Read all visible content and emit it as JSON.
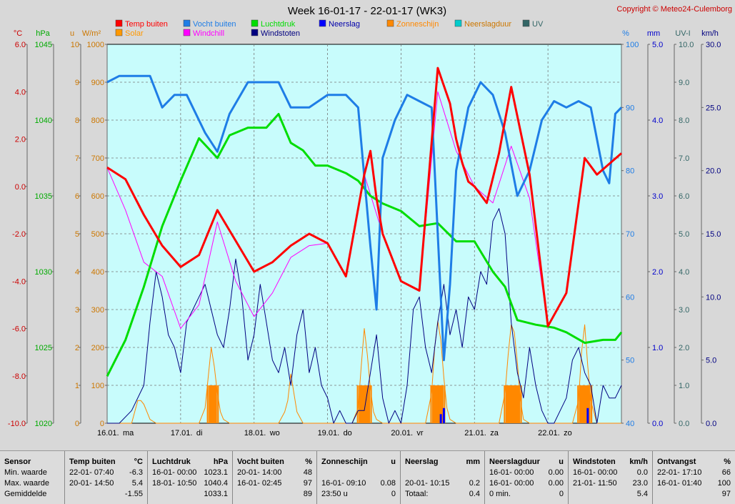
{
  "title": "Week 16-01-17 - 22-01-17 (WK3)",
  "copyright": "Copyright © Meteo24-Culemborg",
  "legend": [
    {
      "label": "Temp buiten",
      "color": "#ff0000"
    },
    {
      "label": "Vocht buiten",
      "color": "#1e7de6"
    },
    {
      "label": "Luchtdruk",
      "color": "#00dd00"
    },
    {
      "label": "Neerslag",
      "color": "#0000ff"
    },
    {
      "label": "Zonneschijn",
      "color": "#ff8800"
    },
    {
      "label": "Neerslagduur",
      "color": "#00cccc"
    },
    {
      "label": "UV",
      "color": "#336666"
    },
    {
      "label": "Solar",
      "color": "#ff9900"
    },
    {
      "label": "Windchill",
      "color": "#ff00ff"
    },
    {
      "label": "Windstoten",
      "color": "#000080"
    }
  ],
  "chart_data": {
    "type": "line",
    "x_start": "2017-01-16 00:00",
    "x_end": "2017-01-22 23:59",
    "x_tick_labels": [
      "16.01.",
      "ma",
      "17.01.",
      "di",
      "18.01.",
      "wo",
      "19.01.",
      "do",
      "20.01.",
      "vr",
      "21.01.",
      "za",
      "22.01.",
      "zo"
    ],
    "axes": {
      "temp": {
        "unit": "°C",
        "min": -10,
        "max": 6,
        "ticks": [
          "6.0",
          "4.0",
          "2.0",
          "0.0",
          "-2.0",
          "-4.0",
          "-6.0",
          "-8.0",
          "-10.0"
        ],
        "color": "#cc0000"
      },
      "pressure": {
        "unit": "hPa",
        "min": 1020,
        "max": 1045,
        "ticks": [
          "1045",
          "1040",
          "1035",
          "1030",
          "1025",
          "1020"
        ],
        "color": "#00aa00"
      },
      "sun_hours": {
        "unit": "u",
        "min": 0,
        "max": 10,
        "ticks": [
          "10",
          "9",
          "8",
          "7",
          "6",
          "5",
          "4",
          "3",
          "2",
          "1",
          "0"
        ],
        "color": "#cc7700"
      },
      "solar": {
        "unit": "W/m²",
        "min": 0,
        "max": 1000,
        "ticks": [
          "1000",
          "900",
          "800",
          "700",
          "600",
          "500",
          "400",
          "300",
          "200",
          "100",
          "0"
        ],
        "color": "#cc7700"
      },
      "humidity": {
        "unit": "%",
        "min": 40,
        "max": 100,
        "ticks": [
          "100",
          "90",
          "80",
          "70",
          "60",
          "50",
          "40"
        ],
        "color": "#1e7de6"
      },
      "rain": {
        "unit": "mm",
        "min": 0,
        "max": 5,
        "ticks": [
          "5.0",
          "4.0",
          "3.0",
          "2.0",
          "1.0",
          "0.0"
        ],
        "color": "#0000cc"
      },
      "uv": {
        "unit": "UV-I",
        "min": 0,
        "max": 10,
        "ticks": [
          "10.0",
          "9.0",
          "8.0",
          "7.0",
          "6.0",
          "5.0",
          "4.0",
          "3.0",
          "2.0",
          "1.0",
          "0.0"
        ],
        "color": "#336666"
      },
      "wind": {
        "unit": "km/h",
        "min": 0,
        "max": 30,
        "ticks": [
          "30.0",
          "25.0",
          "20.0",
          "15.0",
          "10.0",
          "5.0",
          "0.0"
        ],
        "color": "#000080"
      }
    },
    "series": [
      {
        "name": "Temp buiten",
        "axis": "temp",
        "hours": [
          0,
          6,
          12,
          18,
          24,
          30,
          36,
          42,
          48,
          54,
          60,
          66,
          72,
          78,
          84,
          86,
          88,
          90,
          96,
          102,
          108,
          112,
          114,
          116,
          118,
          120,
          124,
          128,
          132,
          138,
          144,
          150,
          156,
          160,
          168
        ],
        "values": [
          0.8,
          0.3,
          -1.2,
          -2.5,
          -3.4,
          -2.9,
          -1.0,
          -2.3,
          -3.6,
          -3.2,
          -2.5,
          -2.0,
          -2.4,
          -3.8,
          0.5,
          1.5,
          -0.5,
          -2.0,
          -4.0,
          -4.4,
          5.0,
          3.5,
          2.0,
          1.0,
          0.2,
          0.0,
          -0.7,
          1.4,
          4.2,
          0.5,
          -5.9,
          -4.5,
          1.2,
          0.5,
          1.4
        ]
      },
      {
        "name": "Windchill",
        "axis": "temp",
        "hours": [
          0,
          6,
          12,
          18,
          24,
          30,
          36,
          42,
          48,
          54,
          60,
          66,
          72,
          78,
          84,
          90,
          96,
          102,
          108,
          114,
          120,
          126,
          132,
          138,
          144,
          150,
          156,
          160,
          168
        ],
        "values": [
          0.8,
          -1.0,
          -3.2,
          -3.8,
          -6.0,
          -5.0,
          -1.5,
          -4.0,
          -5.5,
          -4.5,
          -3.0,
          -2.5,
          -2.4,
          -3.8,
          0.5,
          -2.0,
          -4.0,
          -4.4,
          4.0,
          1.5,
          0.0,
          -0.7,
          1.7,
          -0.5,
          -5.9,
          -4.5,
          1.2,
          0.5,
          1.4
        ]
      },
      {
        "name": "Vocht buiten",
        "axis": "humidity",
        "hours": [
          0,
          4,
          8,
          14,
          18,
          22,
          26,
          32,
          36,
          40,
          46,
          52,
          56,
          60,
          66,
          72,
          78,
          82,
          86,
          88,
          90,
          94,
          98,
          102,
          106,
          110,
          112,
          114,
          118,
          122,
          126,
          130,
          134,
          138,
          142,
          146,
          150,
          154,
          158,
          162,
          164,
          166,
          168
        ],
        "values": [
          94,
          95,
          95,
          95,
          90,
          92,
          92,
          86,
          83,
          89,
          94,
          94,
          94,
          90,
          90,
          92,
          92,
          90,
          68,
          58,
          82,
          88,
          92,
          91,
          90,
          50,
          62,
          80,
          90,
          94,
          92,
          86,
          76,
          80,
          88,
          91,
          90,
          91,
          90,
          80,
          78,
          89,
          90
        ]
      },
      {
        "name": "Luchtdruk",
        "axis": "pressure",
        "hours": [
          0,
          6,
          12,
          18,
          24,
          30,
          36,
          40,
          46,
          52,
          56,
          60,
          64,
          68,
          72,
          78,
          82,
          86,
          90,
          96,
          102,
          108,
          114,
          120,
          126,
          130,
          134,
          140,
          146,
          150,
          156,
          162,
          166,
          168
        ],
        "values": [
          1023.1,
          1025.5,
          1029,
          1033,
          1036,
          1038.8,
          1037.5,
          1039,
          1039.5,
          1039.5,
          1040.4,
          1038.5,
          1038,
          1037,
          1037,
          1036.5,
          1036,
          1035,
          1034.5,
          1034,
          1033,
          1033.2,
          1032,
          1032,
          1030,
          1029,
          1026.8,
          1026.5,
          1026.3,
          1026,
          1025.3,
          1025.5,
          1025.5,
          1026
        ]
      },
      {
        "name": "Windstoten",
        "axis": "wind",
        "hours": [
          0,
          4,
          8,
          12,
          14,
          16,
          18,
          20,
          22,
          24,
          26,
          28,
          30,
          32,
          34,
          36,
          38,
          40,
          42,
          44,
          46,
          48,
          50,
          52,
          54,
          56,
          58,
          60,
          62,
          64,
          66,
          68,
          70,
          72,
          74,
          76,
          78,
          80,
          82,
          84,
          86,
          88,
          90,
          92,
          94,
          96,
          98,
          100,
          102,
          104,
          106,
          108,
          110,
          112,
          114,
          116,
          118,
          120,
          122,
          124,
          126,
          128,
          130,
          132,
          134,
          136,
          138,
          140,
          142,
          144,
          146,
          148,
          150,
          152,
          154,
          156,
          158,
          160,
          162,
          164,
          166,
          168
        ],
        "values": [
          0,
          0,
          1,
          3,
          8,
          12,
          10,
          7,
          6,
          4,
          8,
          9,
          10,
          11,
          9,
          7,
          6,
          9,
          13,
          10,
          5,
          7,
          11,
          8,
          5,
          4,
          6,
          3,
          7,
          9,
          4,
          6,
          3,
          2,
          0,
          1,
          0,
          0,
          1,
          1,
          4,
          7,
          2,
          0,
          1,
          0,
          3,
          9,
          10,
          6,
          4,
          8,
          11,
          7,
          9,
          6,
          10,
          9,
          12,
          11,
          16,
          17,
          15,
          8,
          4,
          2,
          6,
          3,
          1,
          0,
          0,
          1,
          2,
          5,
          6,
          4,
          3,
          0,
          3,
          2,
          2,
          3
        ]
      },
      {
        "name": "Solar",
        "axis": "solar",
        "hours": [
          0,
          8,
          9,
          10,
          11,
          12,
          13,
          14,
          16,
          30,
          32,
          33,
          34,
          35,
          36,
          37,
          38,
          40,
          56,
          58,
          59,
          60,
          61,
          62,
          64,
          80,
          82,
          83,
          84,
          85,
          86,
          87,
          88,
          90,
          104,
          106,
          107,
          108,
          109,
          110,
          111,
          112,
          114,
          128,
          130,
          131,
          132,
          133,
          134,
          135,
          136,
          138,
          152,
          154,
          155,
          156,
          157,
          158,
          160,
          168
        ],
        "values": [
          0,
          0,
          30,
          60,
          60,
          50,
          30,
          10,
          0,
          0,
          40,
          120,
          200,
          150,
          80,
          30,
          10,
          0,
          0,
          30,
          60,
          130,
          80,
          30,
          0,
          0,
          40,
          150,
          250,
          180,
          90,
          30,
          10,
          0,
          0,
          80,
          200,
          270,
          220,
          120,
          40,
          10,
          0,
          0,
          80,
          180,
          260,
          240,
          160,
          60,
          10,
          0,
          0,
          60,
          190,
          260,
          150,
          60,
          0,
          0
        ]
      }
    ]
  },
  "stats": {
    "columns": [
      {
        "header": "Sensor",
        "unit": "",
        "rows": [
          [
            "Min. waarde",
            "",
            ""
          ],
          [
            "Max. waarde",
            "",
            ""
          ],
          [
            "Gemiddelde",
            "",
            ""
          ]
        ]
      },
      {
        "header": "Temp buiten",
        "unit": "°C",
        "rows": [
          [
            "22-01- 07:40",
            "-6.3"
          ],
          [
            "20-01- 14:50",
            "5.4"
          ],
          [
            "",
            "-1.55"
          ]
        ]
      },
      {
        "header": "Luchtdruk",
        "unit": "hPa",
        "rows": [
          [
            "16-01- 00:00",
            "1023.1"
          ],
          [
            "18-01- 10:50",
            "1040.4"
          ],
          [
            "",
            "1033.1"
          ]
        ]
      },
      {
        "header": "Vocht buiten",
        "unit": "%",
        "rows": [
          [
            "20-01- 14:00",
            "48"
          ],
          [
            "16-01- 02:45",
            "97"
          ],
          [
            "",
            "89"
          ]
        ]
      },
      {
        "header": "Zonneschijn",
        "unit": "u",
        "rows": [
          [
            "",
            ""
          ],
          [
            "16-01- 09:10",
            "0.08"
          ],
          [
            "23:50 u",
            "0"
          ]
        ]
      },
      {
        "header": "Neerslag",
        "unit": "mm",
        "rows": [
          [
            "",
            ""
          ],
          [
            "20-01- 10:15",
            "0.2"
          ],
          [
            "Totaal:",
            "0.4"
          ]
        ]
      },
      {
        "header": "Neerslagduur",
        "unit": "u",
        "rows": [
          [
            "16-01- 00:00",
            "0.00"
          ],
          [
            "16-01- 00:00",
            "0.00"
          ],
          [
            "0 min.",
            "0"
          ]
        ]
      },
      {
        "header": "Windstoten",
        "unit": "km/h",
        "rows": [
          [
            "16-01- 00:00",
            "0.0"
          ],
          [
            "21-01- 11:50",
            "23.0"
          ],
          [
            "",
            "5.4"
          ]
        ]
      },
      {
        "header": "Ontvangst",
        "unit": "%",
        "rows": [
          [
            "22-01- 17:10",
            "66"
          ],
          [
            "16-01- 01:40",
            "100"
          ],
          [
            "",
            "97"
          ]
        ]
      }
    ]
  }
}
